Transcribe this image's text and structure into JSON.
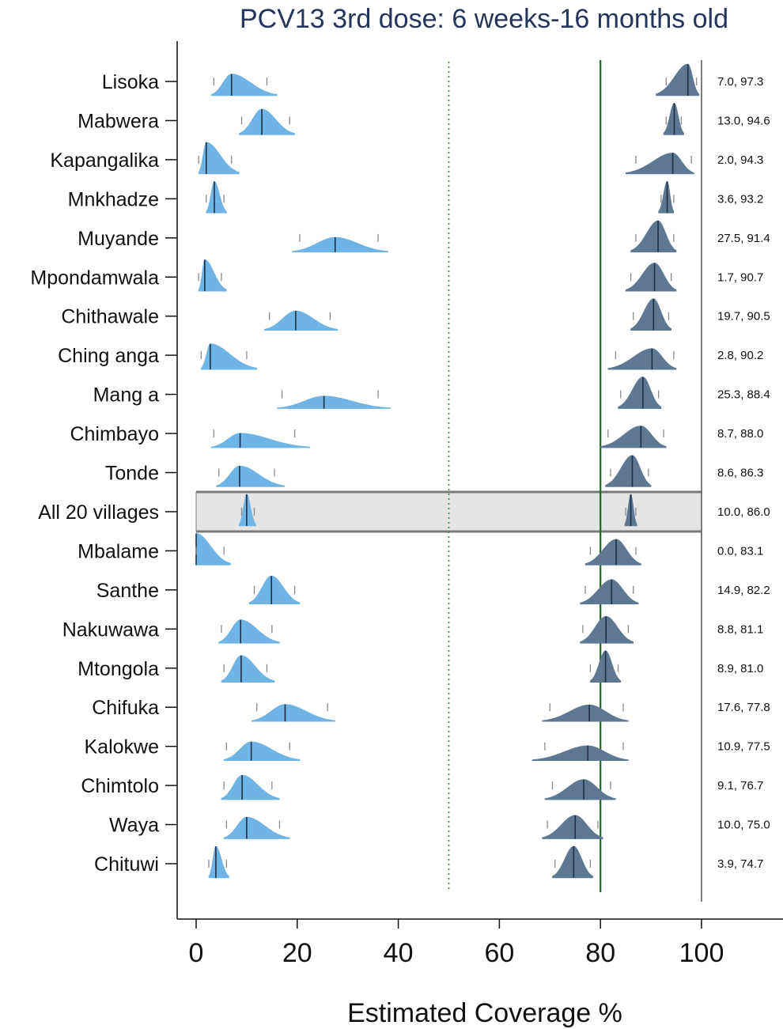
{
  "chart_data": {
    "type": "violin",
    "title": "PCV13 3rd dose: 6 weeks-16 months old",
    "xlabel": "Estimated Coverage %",
    "xlim": [
      0,
      100
    ],
    "xticks": [
      "0",
      "20",
      "40",
      "60",
      "80",
      "100"
    ],
    "reference_lines": {
      "dotted": 50,
      "solid_green": 80,
      "solid_dark": 100
    },
    "colors": {
      "lower": "#6fb4e4",
      "upper": "#5e7894",
      "green": "#1a6e1a",
      "highlight_fill": "#e4e4e4"
    },
    "highlight_row": "All 20 villages",
    "rows": [
      {
        "label": "Lisoka",
        "value_text": "7.0, 97.3",
        "lower": {
          "median": 7.0,
          "lo": 3.5,
          "hi": 14.0,
          "min": 3.0,
          "max": 16.0
        },
        "upper": {
          "median": 97.3,
          "lo": 93.0,
          "hi": 99.0,
          "min": 91.0,
          "max": 99.5
        }
      },
      {
        "label": "Mabwera",
        "value_text": "13.0, 94.6",
        "lower": {
          "median": 13.0,
          "lo": 9.0,
          "hi": 18.5,
          "min": 8.5,
          "max": 19.5
        },
        "upper": {
          "median": 94.6,
          "lo": 93.0,
          "hi": 96.0,
          "min": 92.5,
          "max": 96.5
        }
      },
      {
        "label": "Kapangalika",
        "value_text": "2.0, 94.3",
        "lower": {
          "median": 2.0,
          "lo": 0.5,
          "hi": 7.0,
          "min": 0.5,
          "max": 8.5
        },
        "upper": {
          "median": 94.3,
          "lo": 87.0,
          "hi": 98.0,
          "min": 85.0,
          "max": 98.5
        }
      },
      {
        "label": "Mnkhadze",
        "value_text": "3.6, 93.2",
        "lower": {
          "median": 3.6,
          "lo": 2.0,
          "hi": 5.5,
          "min": 2.0,
          "max": 6.0
        },
        "upper": {
          "median": 93.2,
          "lo": 92.0,
          "hi": 94.5,
          "min": 91.5,
          "max": 94.5
        }
      },
      {
        "label": "Muyande",
        "value_text": "27.5, 91.4",
        "lower": {
          "median": 27.5,
          "lo": 20.5,
          "hi": 36.0,
          "min": 19.0,
          "max": 38.0
        },
        "upper": {
          "median": 91.4,
          "lo": 87.0,
          "hi": 94.5,
          "min": 86.0,
          "max": 95.0
        }
      },
      {
        "label": "Mpondamwala",
        "value_text": "1.7, 90.7",
        "lower": {
          "median": 1.7,
          "lo": 0.5,
          "hi": 5.0,
          "min": 0.5,
          "max": 6.0
        },
        "upper": {
          "median": 90.7,
          "lo": 86.0,
          "hi": 94.0,
          "min": 85.0,
          "max": 95.0
        }
      },
      {
        "label": "Chithawale",
        "value_text": "19.7, 90.5",
        "lower": {
          "median": 19.7,
          "lo": 14.5,
          "hi": 26.5,
          "min": 13.5,
          "max": 28.0
        },
        "upper": {
          "median": 90.5,
          "lo": 86.5,
          "hi": 93.5,
          "min": 86.0,
          "max": 94.0
        }
      },
      {
        "label": "Ching anga",
        "value_text": "2.8, 90.2",
        "lower": {
          "median": 2.8,
          "lo": 1.0,
          "hi": 10.0,
          "min": 1.0,
          "max": 12.0
        },
        "upper": {
          "median": 90.2,
          "lo": 83.0,
          "hi": 94.5,
          "min": 81.5,
          "max": 95.0
        }
      },
      {
        "label": "Mang a",
        "value_text": "25.3, 88.4",
        "lower": {
          "median": 25.3,
          "lo": 17.0,
          "hi": 36.0,
          "min": 16.0,
          "max": 38.5
        },
        "upper": {
          "median": 88.4,
          "lo": 84.0,
          "hi": 91.5,
          "min": 83.5,
          "max": 92.0
        }
      },
      {
        "label": "Chimbayo",
        "value_text": "8.7, 88.0",
        "lower": {
          "median": 8.7,
          "lo": 3.5,
          "hi": 19.5,
          "min": 3.0,
          "max": 22.5
        },
        "upper": {
          "median": 88.0,
          "lo": 81.5,
          "hi": 92.5,
          "min": 80.0,
          "max": 93.0
        }
      },
      {
        "label": "Tonde",
        "value_text": "8.6, 86.3",
        "lower": {
          "median": 8.6,
          "lo": 4.5,
          "hi": 15.5,
          "min": 4.0,
          "max": 17.5
        },
        "upper": {
          "median": 86.3,
          "lo": 82.0,
          "hi": 89.5,
          "min": 81.0,
          "max": 90.0
        }
      },
      {
        "label": "All 20 villages",
        "value_text": "10.0, 86.0",
        "lower": {
          "median": 10.0,
          "lo": 9.0,
          "hi": 11.5,
          "min": 8.5,
          "max": 11.8
        },
        "upper": {
          "median": 86.0,
          "lo": 85.0,
          "hi": 87.0,
          "min": 84.8,
          "max": 87.2
        }
      },
      {
        "label": "Mbalame",
        "value_text": "0.0, 83.1",
        "lower": {
          "median": 0.0,
          "lo": 0.0,
          "hi": 5.5,
          "min": 0.0,
          "max": 6.8
        },
        "upper": {
          "median": 83.1,
          "lo": 78.0,
          "hi": 87.0,
          "min": 77.0,
          "max": 88.0
        }
      },
      {
        "label": "Santhe",
        "value_text": "14.9, 82.2",
        "lower": {
          "median": 14.9,
          "lo": 11.5,
          "hi": 19.5,
          "min": 10.5,
          "max": 20.5
        },
        "upper": {
          "median": 82.2,
          "lo": 77.0,
          "hi": 86.5,
          "min": 76.0,
          "max": 87.5
        }
      },
      {
        "label": "Nakuwawa",
        "value_text": "8.8, 81.1",
        "lower": {
          "median": 8.8,
          "lo": 5.0,
          "hi": 15.0,
          "min": 4.5,
          "max": 16.5
        },
        "upper": {
          "median": 81.1,
          "lo": 76.5,
          "hi": 85.5,
          "min": 76.0,
          "max": 86.5
        }
      },
      {
        "label": "Mtongola",
        "value_text": "8.9, 81.0",
        "lower": {
          "median": 8.9,
          "lo": 5.5,
          "hi": 14.0,
          "min": 5.0,
          "max": 15.5
        },
        "upper": {
          "median": 81.0,
          "lo": 78.0,
          "hi": 83.5,
          "min": 78.0,
          "max": 84.0
        }
      },
      {
        "label": "Chifuka",
        "value_text": "17.6, 77.8",
        "lower": {
          "median": 17.6,
          "lo": 12.0,
          "hi": 26.0,
          "min": 11.0,
          "max": 27.5
        },
        "upper": {
          "median": 77.8,
          "lo": 70.0,
          "hi": 84.5,
          "min": 68.5,
          "max": 85.5
        }
      },
      {
        "label": "Kalokwe",
        "value_text": "10.9, 77.5",
        "lower": {
          "median": 10.9,
          "lo": 6.0,
          "hi": 18.5,
          "min": 5.5,
          "max": 20.5
        },
        "upper": {
          "median": 77.5,
          "lo": 69.0,
          "hi": 84.5,
          "min": 66.5,
          "max": 85.5
        }
      },
      {
        "label": "Chimtolo",
        "value_text": "9.1, 76.7",
        "lower": {
          "median": 9.1,
          "lo": 5.5,
          "hi": 15.0,
          "min": 5.0,
          "max": 16.5
        },
        "upper": {
          "median": 76.7,
          "lo": 70.5,
          "hi": 82.0,
          "min": 69.0,
          "max": 83.0
        }
      },
      {
        "label": "Waya",
        "value_text": "10.0, 75.0",
        "lower": {
          "median": 10.0,
          "lo": 6.0,
          "hi": 16.5,
          "min": 5.5,
          "max": 18.5
        },
        "upper": {
          "median": 75.0,
          "lo": 69.5,
          "hi": 79.5,
          "min": 68.5,
          "max": 80.5
        }
      },
      {
        "label": "Chituwi",
        "value_text": "3.9, 74.7",
        "lower": {
          "median": 3.9,
          "lo": 2.5,
          "hi": 6.0,
          "min": 2.5,
          "max": 6.5
        },
        "upper": {
          "median": 74.7,
          "lo": 71.0,
          "hi": 78.0,
          "min": 70.5,
          "max": 78.5
        }
      }
    ]
  }
}
